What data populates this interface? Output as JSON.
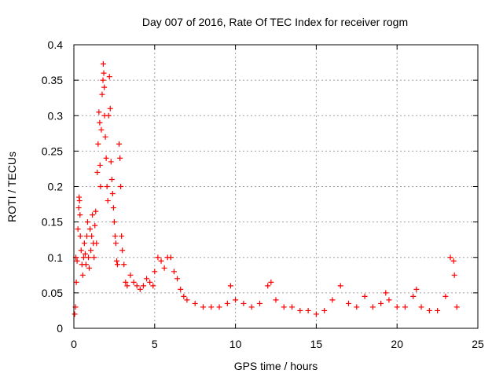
{
  "chart_data": {
    "type": "scatter",
    "title": "Day 007 of 2016, Rate Of TEC Index for receiver rogm",
    "xlabel": "GPS time / hours",
    "ylabel": "ROTI / TECUs",
    "xlim": [
      0,
      25
    ],
    "ylim": [
      0,
      0.4
    ],
    "xticks": [
      "0",
      "5",
      "10",
      "15",
      "20",
      "25"
    ],
    "yticks": [
      "0",
      "0.05",
      "0.1",
      "0.15",
      "0.2",
      "0.25",
      "0.3",
      "0.35",
      "0.4"
    ],
    "grid": true,
    "marker": "+",
    "color": "#ff0000",
    "series": [
      {
        "name": "ROTI",
        "points": [
          [
            0.05,
            0.02
          ],
          [
            0.1,
            0.03
          ],
          [
            0.12,
            0.1
          ],
          [
            0.15,
            0.065
          ],
          [
            0.2,
            0.095
          ],
          [
            0.25,
            0.14
          ],
          [
            0.3,
            0.17
          ],
          [
            0.32,
            0.185
          ],
          [
            0.35,
            0.18
          ],
          [
            0.38,
            0.16
          ],
          [
            0.4,
            0.13
          ],
          [
            0.45,
            0.11
          ],
          [
            0.5,
            0.09
          ],
          [
            0.55,
            0.075
          ],
          [
            0.6,
            0.1
          ],
          [
            0.65,
            0.12
          ],
          [
            0.7,
            0.105
          ],
          [
            0.75,
            0.09
          ],
          [
            0.8,
            0.13
          ],
          [
            0.85,
            0.15
          ],
          [
            0.9,
            0.1
          ],
          [
            0.95,
            0.085
          ],
          [
            1.0,
            0.14
          ],
          [
            1.05,
            0.11
          ],
          [
            1.1,
            0.13
          ],
          [
            1.15,
            0.16
          ],
          [
            1.2,
            0.12
          ],
          [
            1.25,
            0.1
          ],
          [
            1.3,
            0.145
          ],
          [
            1.35,
            0.165
          ],
          [
            1.4,
            0.12
          ],
          [
            1.45,
            0.22
          ],
          [
            1.5,
            0.26
          ],
          [
            1.55,
            0.305
          ],
          [
            1.6,
            0.29
          ],
          [
            1.62,
            0.23
          ],
          [
            1.65,
            0.2
          ],
          [
            1.7,
            0.28
          ],
          [
            1.75,
            0.33
          ],
          [
            1.8,
            0.35
          ],
          [
            1.82,
            0.373
          ],
          [
            1.85,
            0.36
          ],
          [
            1.88,
            0.34
          ],
          [
            1.9,
            0.3
          ],
          [
            1.95,
            0.27
          ],
          [
            2.0,
            0.24
          ],
          [
            2.05,
            0.2
          ],
          [
            2.1,
            0.18
          ],
          [
            2.15,
            0.3
          ],
          [
            2.2,
            0.355
          ],
          [
            2.25,
            0.31
          ],
          [
            2.3,
            0.235
          ],
          [
            2.35,
            0.21
          ],
          [
            2.4,
            0.19
          ],
          [
            2.45,
            0.17
          ],
          [
            2.5,
            0.15
          ],
          [
            2.55,
            0.13
          ],
          [
            2.6,
            0.12
          ],
          [
            2.65,
            0.095
          ],
          [
            2.7,
            0.09
          ],
          [
            2.8,
            0.26
          ],
          [
            2.85,
            0.24
          ],
          [
            2.9,
            0.2
          ],
          [
            2.95,
            0.13
          ],
          [
            3.0,
            0.11
          ],
          [
            3.1,
            0.09
          ],
          [
            3.2,
            0.065
          ],
          [
            3.3,
            0.06
          ],
          [
            3.5,
            0.075
          ],
          [
            3.7,
            0.065
          ],
          [
            3.9,
            0.06
          ],
          [
            4.1,
            0.055
          ],
          [
            4.3,
            0.06
          ],
          [
            4.5,
            0.07
          ],
          [
            4.7,
            0.065
          ],
          [
            4.9,
            0.06
          ],
          [
            5.0,
            0.08
          ],
          [
            5.2,
            0.1
          ],
          [
            5.4,
            0.095
          ],
          [
            5.6,
            0.085
          ],
          [
            5.8,
            0.1
          ],
          [
            6.0,
            0.1
          ],
          [
            6.2,
            0.08
          ],
          [
            6.4,
            0.07
          ],
          [
            6.6,
            0.055
          ],
          [
            6.8,
            0.045
          ],
          [
            7.0,
            0.04
          ],
          [
            7.5,
            0.035
          ],
          [
            8.0,
            0.03
          ],
          [
            8.5,
            0.03
          ],
          [
            9.0,
            0.03
          ],
          [
            9.5,
            0.035
          ],
          [
            9.7,
            0.06
          ],
          [
            10.0,
            0.04
          ],
          [
            10.5,
            0.035
          ],
          [
            11.0,
            0.03
          ],
          [
            11.5,
            0.035
          ],
          [
            12.0,
            0.06
          ],
          [
            12.2,
            0.065
          ],
          [
            12.5,
            0.04
          ],
          [
            13.0,
            0.03
          ],
          [
            13.5,
            0.03
          ],
          [
            14.0,
            0.025
          ],
          [
            14.5,
            0.025
          ],
          [
            15.0,
            0.02
          ],
          [
            15.5,
            0.025
          ],
          [
            16.0,
            0.04
          ],
          [
            16.5,
            0.06
          ],
          [
            17.0,
            0.035
          ],
          [
            17.5,
            0.03
          ],
          [
            18.0,
            0.045
          ],
          [
            18.5,
            0.03
          ],
          [
            19.0,
            0.035
          ],
          [
            19.3,
            0.05
          ],
          [
            19.5,
            0.04
          ],
          [
            20.0,
            0.03
          ],
          [
            20.5,
            0.03
          ],
          [
            21.0,
            0.045
          ],
          [
            21.2,
            0.055
          ],
          [
            21.5,
            0.03
          ],
          [
            22.0,
            0.025
          ],
          [
            22.5,
            0.025
          ],
          [
            23.0,
            0.045
          ],
          [
            23.3,
            0.1
          ],
          [
            23.5,
            0.095
          ],
          [
            23.55,
            0.075
          ],
          [
            23.7,
            0.03
          ]
        ]
      }
    ]
  }
}
